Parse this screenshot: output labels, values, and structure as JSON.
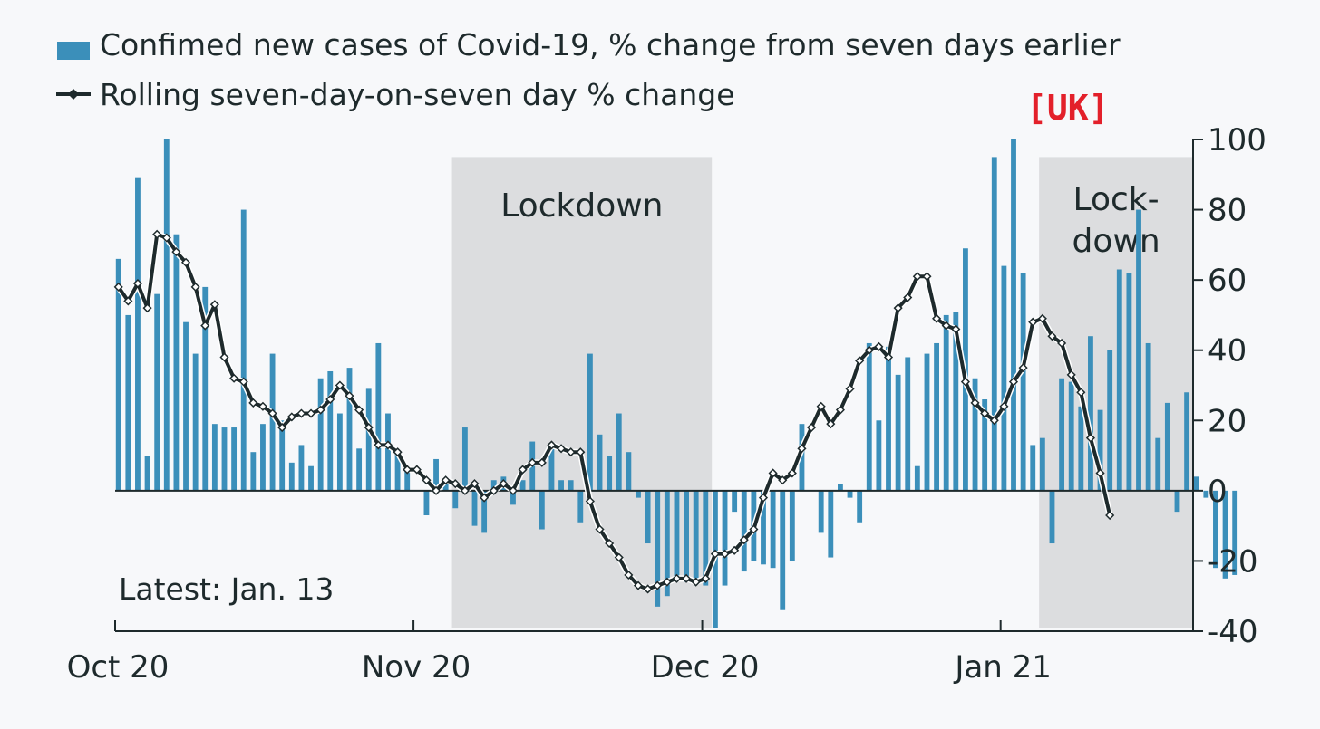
{
  "chart_data": {
    "type": "bar",
    "legend": {
      "bars_label": "Confimed new cases of Covid-19, % change from seven days earlier",
      "line_label": "Rolling seven-day-on-seven day % change",
      "placement": "top-left"
    },
    "region_tag": "[UK]",
    "note": "Latest: Jan. 13",
    "ylim": [
      -40,
      100
    ],
    "y_ticks": [
      100,
      80,
      60,
      40,
      20,
      0,
      -20,
      -40
    ],
    "x_ticks": [
      {
        "date": "2020-10-01",
        "label": "Oct 20"
      },
      {
        "date": "2020-11-01",
        "label": "Nov 20"
      },
      {
        "date": "2020-12-01",
        "label": "Dec 20"
      },
      {
        "date": "2021-01-01",
        "label": "Jan 21"
      }
    ],
    "x_range": [
      "2020-10-01",
      "2021-01-21"
    ],
    "shaded_periods": [
      {
        "start": "2020-11-05",
        "end": "2020-12-02",
        "label": "Lockdown"
      },
      {
        "start": "2021-01-05",
        "end": "2021-01-21",
        "label": "Lock-\ndown"
      }
    ],
    "colors": {
      "bars": "#3b8fba",
      "line": "#1e2a2c",
      "shade": "#dcdddf",
      "axis": "#1e2a2c",
      "tag": "#e3202a"
    },
    "start_date": "2020-10-01",
    "daily_bars": [
      66,
      50,
      89,
      10,
      56,
      100,
      73,
      48,
      39,
      58,
      19,
      18,
      18,
      80,
      11,
      19,
      39,
      20,
      8,
      13,
      7,
      32,
      34,
      22,
      35,
      12,
      29,
      42,
      22,
      11,
      6,
      0,
      -7,
      9,
      2,
      -5,
      18,
      -10,
      -12,
      3,
      4,
      -4,
      3,
      14,
      -11,
      13,
      3,
      3,
      -9,
      39,
      16,
      10,
      22,
      11,
      -2,
      -15,
      -33,
      -30,
      -25,
      -26,
      -26,
      -27,
      -39,
      -27,
      -6,
      -23,
      -20,
      -21,
      -22,
      -34,
      -20,
      19,
      0,
      -12,
      -19,
      2,
      -2,
      -9,
      42,
      20,
      41,
      33,
      38,
      7,
      39,
      42,
      50,
      51,
      69,
      32,
      26,
      95,
      64,
      100,
      62,
      13,
      15,
      -15,
      32,
      31,
      24,
      44,
      23,
      40,
      63,
      62,
      80,
      42,
      15,
      25,
      -6,
      28,
      4,
      -2,
      -22,
      -25,
      -24
    ],
    "rolling_line": [
      58,
      54,
      59,
      52,
      73,
      72,
      68,
      65,
      58,
      47,
      53,
      38,
      32,
      31,
      25,
      24,
      22,
      18,
      21,
      22,
      22,
      23,
      26,
      30,
      27,
      23,
      18,
      13,
      13,
      11,
      6,
      6,
      3,
      0,
      3,
      2,
      0,
      2,
      -2,
      0,
      2,
      0,
      6,
      8,
      8,
      13,
      12,
      11,
      11,
      -3,
      -11,
      -15,
      -19,
      -24,
      -27,
      -28,
      -27,
      -26,
      -25,
      -25,
      -26,
      -25,
      -18,
      -18,
      -17,
      -14,
      -11,
      -2,
      5,
      3,
      5,
      12,
      18,
      24,
      19,
      23,
      29,
      37,
      40,
      41,
      38,
      52,
      55,
      61,
      61,
      49,
      47,
      46,
      31,
      25,
      22,
      20,
      24,
      31,
      35,
      48,
      49,
      44,
      42,
      33,
      28,
      15,
      5,
      -7
    ]
  }
}
